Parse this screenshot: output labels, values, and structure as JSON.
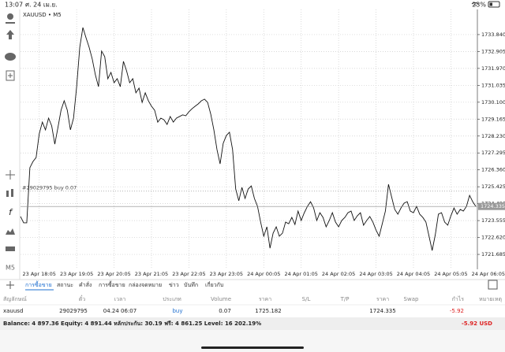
{
  "status_bar": {
    "time": "13:07",
    "date": "ศ. 24 เม.ย.",
    "battery": "23%"
  },
  "chart_data": {
    "type": "line",
    "title": "XAUUSD • M5",
    "color": "#111111",
    "values": [
      1723.78,
      1723.43,
      1723.43,
      1726.48,
      1726.82,
      1727.04,
      1728.35,
      1729.0,
      1728.57,
      1729.22,
      1728.79,
      1727.78,
      1728.7,
      1729.66,
      1730.18,
      1729.66,
      1728.57,
      1729.22,
      1730.96,
      1733.14,
      1734.23,
      1733.67,
      1733.14,
      1732.49,
      1731.62,
      1730.96,
      1732.93,
      1732.62,
      1731.4,
      1731.75,
      1731.18,
      1731.4,
      1730.96,
      1732.36,
      1731.84,
      1731.18,
      1731.4,
      1730.62,
      1730.88,
      1730.09,
      1730.62,
      1730.18,
      1729.88,
      1729.66,
      1729.0,
      1729.22,
      1729.13,
      1728.87,
      1729.31,
      1729.0,
      1729.22,
      1729.31,
      1729.4,
      1729.35,
      1729.57,
      1729.74,
      1729.88,
      1730.01,
      1730.18,
      1730.27,
      1730.09,
      1729.44,
      1728.57,
      1727.48,
      1726.69,
      1727.83,
      1728.26,
      1728.44,
      1727.48,
      1725.3,
      1724.65,
      1725.39,
      1724.78,
      1725.3,
      1725.47,
      1724.78,
      1724.34,
      1723.47,
      1722.69,
      1723.21,
      1722.03,
      1722.86,
      1723.21,
      1722.69,
      1722.86,
      1723.47,
      1723.38,
      1723.73,
      1723.34,
      1724.08,
      1723.56,
      1723.99,
      1724.34,
      1724.6,
      1724.25,
      1723.56,
      1723.99,
      1723.73,
      1723.21,
      1723.56,
      1723.99,
      1723.47,
      1723.21,
      1723.56,
      1723.73,
      1723.99,
      1724.08,
      1723.56,
      1723.82,
      1723.99,
      1723.3,
      1723.56,
      1723.78,
      1723.47,
      1723.03,
      1722.69,
      1723.38,
      1724.08,
      1725.56,
      1724.86,
      1724.17,
      1723.91,
      1724.25,
      1724.52,
      1724.6,
      1724.08,
      1723.99,
      1724.34,
      1723.91,
      1723.73,
      1723.47,
      1722.69,
      1721.9,
      1722.77,
      1723.91,
      1723.99,
      1723.47,
      1723.3,
      1723.82,
      1724.25,
      1723.91,
      1724.17,
      1724.08,
      1724.34,
      1724.95,
      1724.6,
      1724.34
    ],
    "xlim": [
      0,
      146.5
    ],
    "xticks": [
      {
        "value": 6,
        "label": "23 Apr 18:05"
      },
      {
        "value": 18,
        "label": "23 Apr 19:05"
      },
      {
        "value": 30,
        "label": "23 Apr 20:05"
      },
      {
        "value": 42,
        "label": "23 Apr 21:05"
      },
      {
        "value": 54,
        "label": "23 Apr 22:05"
      },
      {
        "value": 66,
        "label": "23 Apr 23:05"
      },
      {
        "value": 78,
        "label": "24 Apr 00:05"
      },
      {
        "value": 90,
        "label": "24 Apr 01:05"
      },
      {
        "value": 102,
        "label": "24 Apr 02:05"
      },
      {
        "value": 114,
        "label": "24 Apr 03:05"
      },
      {
        "value": 126,
        "label": "24 Apr 04:05"
      },
      {
        "value": 138,
        "label": "24 Apr 05:05"
      },
      {
        "value": 150,
        "label": "24 Apr 06:05"
      }
    ],
    "ylim": [
      1720.86,
      1735.23
    ],
    "yticks": [
      {
        "value": 1733.84,
        "label": "1733.840"
      },
      {
        "value": 1732.905,
        "label": "1732.905"
      },
      {
        "value": 1731.97,
        "label": "1731.970"
      },
      {
        "value": 1731.035,
        "label": "1731.035"
      },
      {
        "value": 1730.1,
        "label": "1730.100"
      },
      {
        "value": 1729.165,
        "label": "1729.165"
      },
      {
        "value": 1728.23,
        "label": "1728.230"
      },
      {
        "value": 1727.295,
        "label": "1727.295"
      },
      {
        "value": 1726.36,
        "label": "1726.360"
      },
      {
        "value": 1725.425,
        "label": "1725.425"
      },
      {
        "value": 1724.49,
        "label": "1724.490"
      },
      {
        "value": 1723.555,
        "label": "1723.555"
      },
      {
        "value": 1722.62,
        "label": "1722.620"
      },
      {
        "value": 1721.685,
        "label": "1721.685"
      }
    ],
    "grid": true,
    "order_line": {
      "label": "#29029795 buy 0.07",
      "value": 1725.182
    },
    "price_line": {
      "value": 1724.335
    }
  },
  "tabs": [
    "การซื้อขาย",
    "สถานะ",
    "คำสั่ง",
    "การซื้อขาย",
    "กล่องจดหมาย",
    "ข่าว",
    "บันทึก",
    "เกี่ยวกับ"
  ],
  "table": {
    "headers": [
      "สัญลักษณ์",
      "ตั๋ว",
      "เวลา",
      "ประเภท",
      "Volume",
      "ราคา",
      "S/L",
      "T/P",
      "ราคา",
      "Swap",
      "กำไร",
      "หมายเหตุ"
    ],
    "rows": [
      {
        "symbol": "xauusd",
        "ticket": "29029795",
        "time": "04.24 06:07",
        "type": "buy",
        "volume": "0.07",
        "open_price": "1725.182",
        "price": "1724.335",
        "profit": "-5.92"
      }
    ]
  },
  "balance": {
    "summary": "Balance: 4 897.36 Equity: 4 891.44 หลักประกัน: 30.19 ฟรี: 4 861.25 Level: 16 202.19%",
    "profit": "-5.92  USD"
  }
}
